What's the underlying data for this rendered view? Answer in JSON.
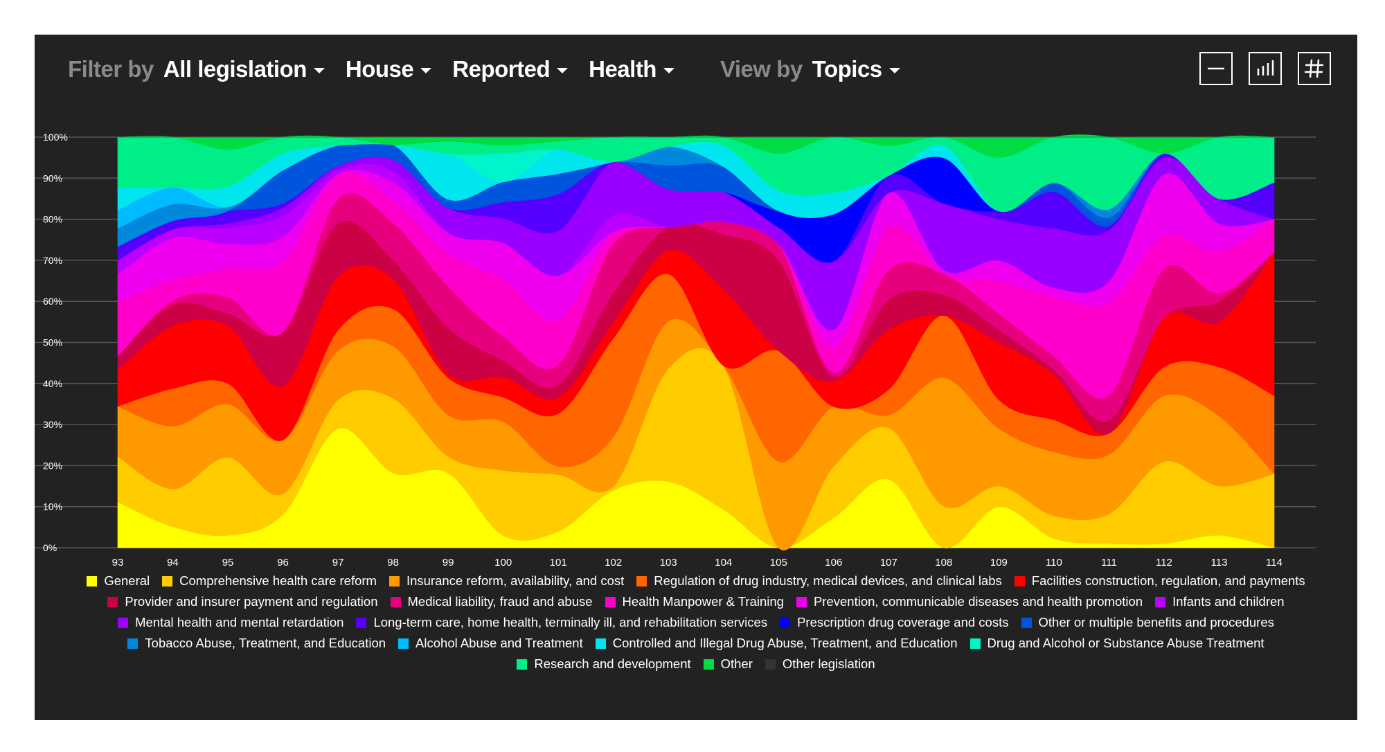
{
  "filter_bar": {
    "filter_label": "Filter by",
    "legislation": "All legislation",
    "chamber": "House",
    "status": "Reported",
    "subject": "Health",
    "view_label": "View by",
    "view": "Topics"
  },
  "tools": [
    {
      "icon": "minus-icon"
    },
    {
      "icon": "bar-chart-icon"
    },
    {
      "icon": "hash-icon"
    }
  ],
  "chart_data": {
    "type": "area",
    "stacked": "percent",
    "x": [
      "93",
      "94",
      "95",
      "96",
      "97",
      "98",
      "99",
      "100",
      "101",
      "102",
      "103",
      "104",
      "105",
      "106",
      "107",
      "108",
      "109",
      "110",
      "111",
      "112",
      "113",
      "114"
    ],
    "ylim": [
      0,
      100
    ],
    "yticks": [
      "0%",
      "10%",
      "20%",
      "30%",
      "40%",
      "50%",
      "60%",
      "70%",
      "80%",
      "90%",
      "100%"
    ],
    "grid": true,
    "legend_position": "bottom",
    "series": [
      {
        "name": "General",
        "color": "#ffff00",
        "values": [
          10,
          5,
          3,
          8,
          29,
          20,
          18,
          3,
          4,
          14,
          14,
          9,
          0,
          7,
          16,
          0,
          10,
          2,
          1,
          1,
          3,
          0
        ]
      },
      {
        "name": "Comprehensive health care reform",
        "color": "#ffcc00",
        "values": [
          10,
          9,
          19,
          5,
          7,
          20,
          4,
          16,
          14,
          1,
          24,
          34,
          0,
          12,
          12,
          10,
          5,
          5,
          7,
          20,
          12,
          18
        ]
      },
      {
        "name": "Insurance reform, availability, and cost",
        "color": "#ff9900",
        "values": [
          11,
          15,
          13,
          13,
          12,
          14,
          10,
          12,
          2,
          12,
          10,
          0,
          21,
          14,
          3,
          31,
          14,
          14,
          14,
          16,
          17,
          0
        ]
      },
      {
        "name": "Regulation of drug industry, medical devices, and clinical labs",
        "color": "#ff6600",
        "values": [
          0,
          9,
          5,
          0,
          5,
          10,
          9,
          6,
          13,
          24,
          10,
          0,
          27,
          0,
          6,
          15,
          7,
          7,
          5,
          7,
          12,
          19
        ]
      },
      {
        "name": "Facilities construction, regulation, and payments",
        "color": "#ff0000",
        "values": [
          8,
          15,
          14,
          13,
          13,
          8,
          1,
          5,
          4,
          4,
          5,
          18,
          0,
          6,
          14,
          0,
          14,
          10,
          0,
          12,
          11,
          35
        ]
      },
      {
        "name": "Provider and insurer payment and regulation",
        "color": "#cc0044",
        "values": [
          3,
          5,
          3,
          13,
          13,
          5,
          11,
          4,
          3,
          7,
          5,
          13,
          22,
          1,
          7,
          5,
          3,
          1,
          3,
          0,
          5,
          0
        ]
      },
      {
        "name": "Medical liability, fraud and abuse",
        "color": "#e6007e",
        "values": [
          0,
          1,
          4,
          0,
          6,
          10,
          10,
          6,
          5,
          12,
          0,
          3,
          4,
          1,
          7,
          5,
          4,
          3,
          6,
          12,
          2,
          0
        ]
      },
      {
        "name": "Health Manpower & Training",
        "color": "#ff00cc",
        "values": [
          12,
          5,
          7,
          17,
          6,
          6,
          8,
          14,
          11,
          3,
          0,
          0,
          0,
          6,
          10,
          0,
          8,
          13,
          22,
          8,
          10,
          8
        ]
      },
      {
        "name": "Prevention, communicable diseases and health promotion",
        "color": "#ee00ee",
        "values": [
          6,
          10,
          6,
          6,
          0,
          5,
          5,
          9,
          11,
          0,
          0,
          0,
          0,
          4,
          8,
          1,
          5,
          2,
          5,
          15,
          7,
          0
        ]
      },
      {
        "name": "Infants and children",
        "color": "#bb00ff",
        "values": [
          3,
          2,
          4,
          5,
          1,
          3,
          0,
          0,
          0,
          4,
          0,
          0,
          0,
          0,
          0,
          0,
          0,
          0,
          0,
          0,
          0,
          0
        ]
      },
      {
        "name": "Mental health and mental retardation",
        "color": "#9900ff",
        "values": [
          0,
          0,
          1,
          2,
          1,
          3,
          6,
          6,
          11,
          13,
          8,
          7,
          4,
          16,
          0,
          16,
          10,
          13,
          12,
          4,
          6,
          0
        ]
      },
      {
        "name": "Long-term care, home health, terminally ill, and rehabilitation services",
        "color": "#5500ff",
        "values": [
          3,
          2,
          3,
          1,
          0,
          0,
          0,
          4,
          9,
          0,
          0,
          0,
          0,
          0,
          4,
          0,
          2,
          8,
          1,
          1,
          0,
          9
        ]
      },
      {
        "name": "Prescription drug coverage and costs",
        "color": "#0000ff",
        "values": [
          0,
          0,
          0,
          0,
          0,
          0,
          0,
          0,
          0,
          0,
          0,
          0,
          4,
          11,
          0,
          11,
          0,
          0,
          0,
          0,
          0,
          0
        ]
      },
      {
        "name": "Other or multiple benefits and procedures",
        "color": "#0055dd",
        "values": [
          0,
          0,
          0,
          8,
          5,
          4,
          2,
          5,
          5,
          0,
          5,
          6,
          0,
          0,
          0,
          0,
          0,
          2,
          2,
          0,
          0,
          0
        ]
      },
      {
        "name": "Tobacco Abuse, Treatment, and Education",
        "color": "#0088dd",
        "values": [
          4,
          4,
          1,
          0,
          0,
          0,
          0,
          0,
          0,
          0,
          4,
          0,
          0,
          0,
          0,
          0,
          0,
          0,
          2,
          0,
          0,
          0
        ]
      },
      {
        "name": "Alcohol Abuse and Treatment",
        "color": "#00bbff",
        "values": [
          4,
          4,
          0,
          0,
          0,
          0,
          0,
          0,
          0,
          0,
          0,
          0,
          0,
          0,
          0,
          0,
          0,
          0,
          0,
          0,
          0,
          0
        ]
      },
      {
        "name": "Controlled and Illegal Drug Abuse, Treatment, and Education",
        "color": "#00e5ee",
        "values": [
          5,
          0,
          5,
          4,
          0,
          0,
          11,
          0,
          6,
          0,
          0,
          5,
          5,
          5,
          0,
          3,
          0,
          0,
          0,
          0,
          0,
          0
        ]
      },
      {
        "name": "Drug and Alcohol or Substance Abuse Treatment",
        "color": "#00f5cc",
        "values": [
          0,
          0,
          0,
          0,
          0,
          0,
          0,
          7,
          0,
          0,
          0,
          0,
          0,
          0,
          0,
          0,
          0,
          0,
          0,
          0,
          0,
          0
        ]
      },
      {
        "name": "Research and development",
        "color": "#00ee88",
        "values": [
          11,
          12,
          9,
          4,
          2,
          0,
          3,
          2,
          2,
          6,
          2,
          2,
          9,
          13,
          7,
          2,
          13,
          10,
          17,
          0,
          15,
          11
        ]
      },
      {
        "name": "Other",
        "color": "#00dd44",
        "values": [
          0,
          0,
          3,
          0,
          0,
          2,
          1,
          2,
          1,
          0,
          0,
          0,
          4,
          0,
          2,
          0,
          5,
          0,
          0,
          4,
          0,
          0
        ]
      },
      {
        "name": "Other legislation",
        "color": "#333333",
        "values": [
          0,
          0,
          0,
          0,
          0,
          0,
          0,
          0,
          0,
          0,
          0,
          0,
          0,
          0,
          0,
          0,
          0,
          0,
          0,
          0,
          0,
          0
        ]
      }
    ]
  }
}
